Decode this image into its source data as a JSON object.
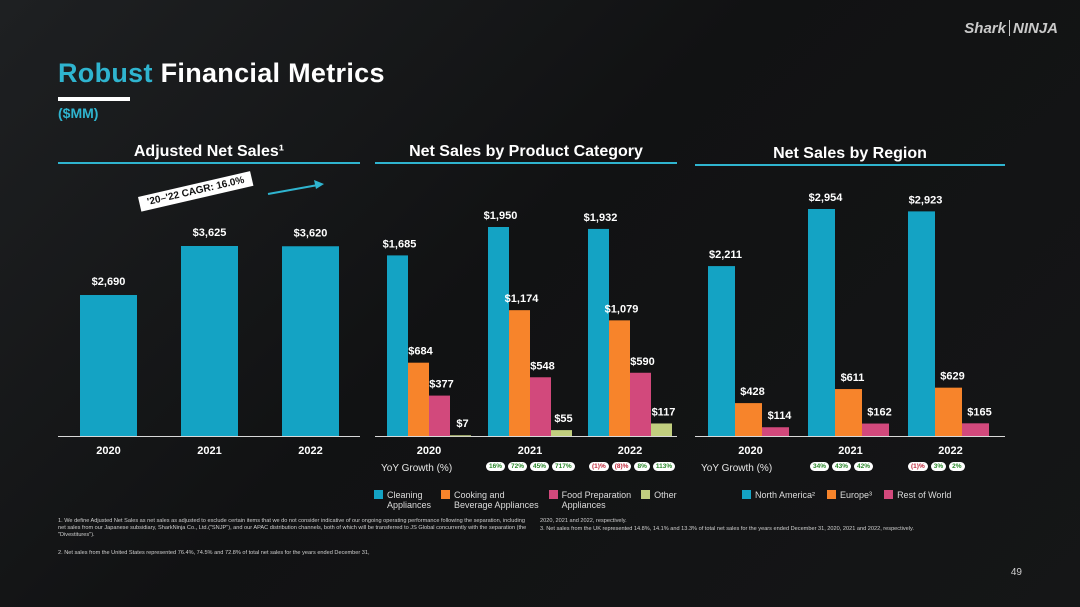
{
  "logo": "Shark|NINJA",
  "title_accent": "Robust",
  "title_rest": " Financial Metrics",
  "subtitle": "($MM)",
  "sections": {
    "adjusted": "Adjusted Net Sales¹",
    "product": "Net Sales by Product Category",
    "region": "Net Sales by Region"
  },
  "cagr_label": "'20–'22 CAGR: 16.0%",
  "yoy_label": "YoY Growth (%)",
  "colors": {
    "blue": "#14a3c4",
    "orange": "#f7842b",
    "pink": "#d2497c",
    "lime": "#c2cf7f",
    "teal": "#2fb4cf",
    "pos": "#2a8a2a",
    "neg": "#c0283a"
  },
  "chart_data": [
    {
      "type": "bar",
      "title": "Adjusted Net Sales¹",
      "categories": [
        "2020",
        "2021",
        "2022"
      ],
      "values": [
        2690,
        3625,
        3620
      ],
      "value_labels": [
        "$2,690",
        "$3,625",
        "$3,620"
      ]
    },
    {
      "type": "bar",
      "title": "Net Sales by Product Category",
      "categories": [
        "2020",
        "2021",
        "2022"
      ],
      "series": [
        {
          "name": "Cleaning Appliances",
          "values": [
            1685,
            1950,
            1932
          ],
          "labels": [
            "$1,685",
            "$1,950",
            "$1,932"
          ]
        },
        {
          "name": "Cooking and Beverage Appliances",
          "values": [
            684,
            1174,
            1079
          ],
          "labels": [
            "$684",
            "$1,174",
            "$1,079"
          ]
        },
        {
          "name": "Food Preparation Appliances",
          "values": [
            377,
            548,
            590
          ],
          "labels": [
            "$377",
            "$548",
            "$590"
          ]
        },
        {
          "name": "Other",
          "values": [
            7,
            55,
            117
          ],
          "labels": [
            "$7",
            "$55",
            "$117"
          ]
        }
      ],
      "yoy_growth": [
        {
          "year": "2021",
          "values": [
            "16%",
            "72%",
            "45%",
            "717%"
          ],
          "sign": [
            "pos",
            "pos",
            "pos",
            "pos"
          ]
        },
        {
          "year": "2022",
          "values": [
            "(1)%",
            "(8)%",
            "8%",
            "113%"
          ],
          "sign": [
            "neg",
            "neg",
            "pos",
            "pos"
          ]
        }
      ]
    },
    {
      "type": "bar",
      "title": "Net Sales by Region",
      "categories": [
        "2020",
        "2021",
        "2022"
      ],
      "series": [
        {
          "name": "North America²",
          "values": [
            2211,
            2954,
            2923
          ],
          "labels": [
            "$2,211",
            "$2,954",
            "$2,923"
          ]
        },
        {
          "name": "Europe³",
          "values": [
            428,
            611,
            629
          ],
          "labels": [
            "$428",
            "$611",
            "$629"
          ]
        },
        {
          "name": "Rest of World",
          "values": [
            114,
            162,
            165
          ],
          "labels": [
            "$114",
            "$162",
            "$165"
          ]
        }
      ],
      "yoy_growth": [
        {
          "year": "2021",
          "values": [
            "34%",
            "43%",
            "42%"
          ],
          "sign": [
            "pos",
            "pos",
            "pos"
          ]
        },
        {
          "year": "2022",
          "values": [
            "(1)%",
            "3%",
            "2%"
          ],
          "sign": [
            "neg",
            "pos",
            "pos"
          ]
        }
      ]
    }
  ],
  "legend_product": [
    {
      "line1": "Cleaning",
      "line2": "Appliances",
      "color": "blue"
    },
    {
      "line1": "Cooking and",
      "line2": "Beverage Appliances",
      "color": "orange"
    },
    {
      "line1": "Food Preparation",
      "line2": "Appliances",
      "color": "pink"
    },
    {
      "line1": "Other",
      "line2": "",
      "color": "lime"
    }
  ],
  "legend_region": [
    {
      "label": "North America²",
      "color": "blue"
    },
    {
      "label": "Europe³",
      "color": "orange"
    },
    {
      "label": "Rest of World",
      "color": "pink"
    }
  ],
  "footnotes": {
    "left1": "1.  We define Adjusted Net Sales as net sales as adjusted to exclude certain items that we do not consider indicative of our ongoing operating performance following the separation, including net sales from our Japanese subsidiary, SharkNinja Co., Ltd.(\"SNJP\"), and our APAC distribution channels, both of which will be transferred to JS Global concurrently with the separation (the \"Divestitures\").",
    "left2": "2.  Net sales from the United States represented 76.4%, 74.5% and 72.8% of total net sales for the years ended December 31,",
    "right1": "2020, 2021 and 2022, respectively.",
    "right2": "3.  Net sales from the UK represented 14.8%, 14.1% and 13.3% of total net sales for the years ended December 31, 2020, 2021 and 2022, respectively."
  },
  "page_number": "49"
}
